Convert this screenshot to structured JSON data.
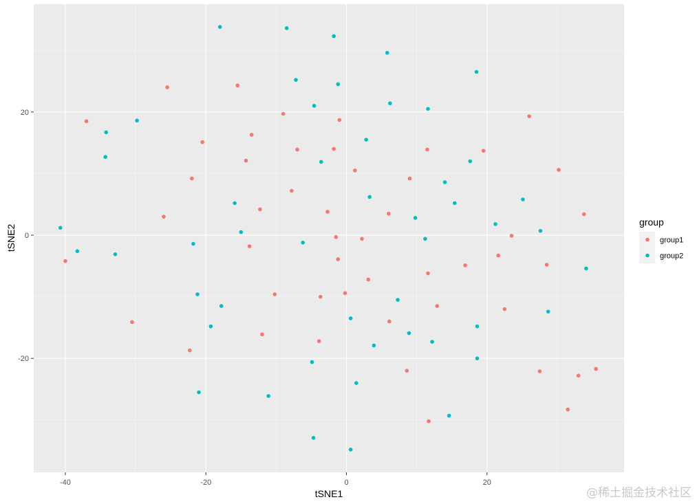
{
  "chart_data": {
    "type": "scatter",
    "title": "",
    "xlabel": "tSNE1",
    "ylabel": "tSNE2",
    "xlim": [
      -44.5,
      39.5
    ],
    "ylim": [
      -38.5,
      37.5
    ],
    "x_ticks": [
      -40,
      -20,
      0,
      20
    ],
    "y_ticks": [
      -20,
      0,
      20
    ],
    "grid": true,
    "legend": {
      "title": "group",
      "position": "right"
    },
    "series": [
      {
        "name": "group1",
        "color": "#F8766D",
        "points": [
          [
            -37,
            18.5
          ],
          [
            -25.5,
            24
          ],
          [
            -15.5,
            24.3
          ],
          [
            -9,
            19.7
          ],
          [
            -1,
            18.7
          ],
          [
            -13.5,
            16.3
          ],
          [
            -20.5,
            15.1
          ],
          [
            -7,
            13.9
          ],
          [
            -1.8,
            14
          ],
          [
            -14.3,
            12.1
          ],
          [
            -22,
            9.2
          ],
          [
            -7.8,
            7.2
          ],
          [
            1.2,
            10.5
          ],
          [
            -12.3,
            4.2
          ],
          [
            -2.7,
            3.8
          ],
          [
            -26,
            3
          ],
          [
            6,
            3.5
          ],
          [
            9,
            9.2
          ],
          [
            11.5,
            13.9
          ],
          [
            19.5,
            13.7
          ],
          [
            26,
            19.3
          ],
          [
            30.2,
            10.6
          ],
          [
            33.8,
            3.4
          ],
          [
            23.5,
            -0.1
          ],
          [
            -1.5,
            -0.3
          ],
          [
            2.2,
            -0.6
          ],
          [
            -13.8,
            -1.8
          ],
          [
            -40,
            -4.2
          ],
          [
            -1.2,
            -3.9
          ],
          [
            21.6,
            -3.3
          ],
          [
            16.9,
            -4.9
          ],
          [
            28.5,
            -4.8
          ],
          [
            11.6,
            -6.2
          ],
          [
            3.1,
            -7.2
          ],
          [
            -10.2,
            -9.6
          ],
          [
            -3.7,
            -10
          ],
          [
            -0.2,
            -9.4
          ],
          [
            12.9,
            -11.5
          ],
          [
            22.5,
            -12
          ],
          [
            -30.5,
            -14.1
          ],
          [
            6.1,
            -14
          ],
          [
            -12,
            -16.1
          ],
          [
            -3.9,
            -17.2
          ],
          [
            -22.3,
            -18.7
          ],
          [
            8.6,
            -22
          ],
          [
            27.5,
            -22.1
          ],
          [
            33,
            -22.8
          ],
          [
            35.5,
            -21.7
          ],
          [
            31.5,
            -28.3
          ],
          [
            11.7,
            -30.2
          ]
        ]
      },
      {
        "name": "group2",
        "color": "#00BFC4",
        "points": [
          [
            -18,
            33.8
          ],
          [
            -8.5,
            33.6
          ],
          [
            -1.8,
            32.3
          ],
          [
            5.8,
            29.6
          ],
          [
            18.5,
            26.5
          ],
          [
            -7.2,
            25.2
          ],
          [
            -1.2,
            24.5
          ],
          [
            -4.6,
            21
          ],
          [
            6.2,
            21.4
          ],
          [
            11.6,
            20.5
          ],
          [
            -34.2,
            16.7
          ],
          [
            -29.8,
            18.6
          ],
          [
            2.8,
            15.5
          ],
          [
            -34.3,
            12.7
          ],
          [
            -3.6,
            11.9
          ],
          [
            17.6,
            12
          ],
          [
            14,
            8.6
          ],
          [
            3.3,
            6.2
          ],
          [
            -15.9,
            5.2
          ],
          [
            15.4,
            5.2
          ],
          [
            25.1,
            5.8
          ],
          [
            -40.7,
            1.2
          ],
          [
            -15,
            0.5
          ],
          [
            9.8,
            2.8
          ],
          [
            21.2,
            1.8
          ],
          [
            27.6,
            0.7
          ],
          [
            11.2,
            -0.6
          ],
          [
            -6.2,
            -1.2
          ],
          [
            -21.8,
            -1.4
          ],
          [
            -38.3,
            -2.6
          ],
          [
            -32.9,
            -3.1
          ],
          [
            34.1,
            -5.4
          ],
          [
            -21.2,
            -9.6
          ],
          [
            -17.8,
            -11.5
          ],
          [
            7.3,
            -10.5
          ],
          [
            28.7,
            -12.4
          ],
          [
            0.6,
            -13.5
          ],
          [
            -19.3,
            -14.8
          ],
          [
            18.6,
            -14.8
          ],
          [
            8.9,
            -15.9
          ],
          [
            12.2,
            -17.3
          ],
          [
            3.9,
            -17.9
          ],
          [
            -4.9,
            -20.6
          ],
          [
            18.6,
            -20
          ],
          [
            -21,
            -25.5
          ],
          [
            -11.1,
            -26.1
          ],
          [
            1.4,
            -24
          ],
          [
            14.6,
            -29.3
          ],
          [
            -4.7,
            -32.9
          ],
          [
            0.6,
            -34.8
          ]
        ]
      }
    ]
  },
  "watermark": "@稀土掘金技术社区"
}
